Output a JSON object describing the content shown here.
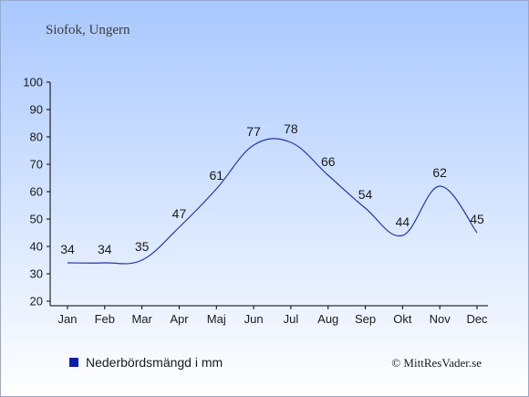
{
  "header": {
    "location": "Siofok, Ungern"
  },
  "legend": {
    "label": "Nederbördsmängd i mm",
    "color": "#0a1fa8"
  },
  "credit": {
    "text": "© MittResVader.se"
  },
  "colors": {
    "background_top": "#a9c8ff",
    "background_bottom": "#ffffff",
    "line": "#2436a8",
    "text": "#1a1a1a",
    "axis": "#000000"
  },
  "chart_data": {
    "type": "line",
    "categories": [
      "Jan",
      "Feb",
      "Mar",
      "Apr",
      "Maj",
      "Jun",
      "Jul",
      "Aug",
      "Sep",
      "Okt",
      "Nov",
      "Dec"
    ],
    "series": [
      {
        "name": "Nederbördsmängd i mm",
        "values": [
          34,
          34,
          35,
          47,
          61,
          77,
          78,
          66,
          54,
          44,
          62,
          45
        ]
      }
    ],
    "ylim": [
      20,
      100
    ],
    "yticks": [
      20,
      30,
      40,
      50,
      60,
      70,
      80,
      90,
      100
    ],
    "grid": false,
    "legend_position": "bottom-left"
  }
}
